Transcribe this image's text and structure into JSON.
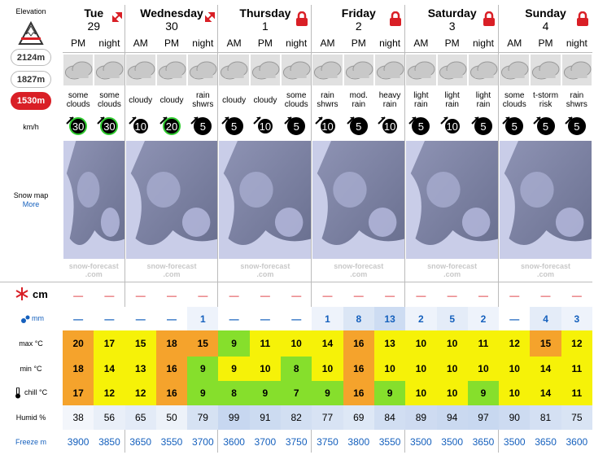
{
  "sidebar": {
    "elevation_label": "Elevation",
    "elevations": [
      "2124m",
      "1827m",
      "1530m"
    ],
    "wind_unit": "km/h",
    "snow_map": "Snow map",
    "more": "More",
    "snow_unit": "cm",
    "rain_unit": "mm",
    "max_label": "max °C",
    "min_label": "min °C",
    "chill_label": "chill °C",
    "humid_label": "Humid %",
    "freeze_label": "Freeze m"
  },
  "days": [
    {
      "name": "Tue",
      "date": "29",
      "periods": [
        "PM",
        "night"
      ]
    },
    {
      "name": "Wednesday",
      "date": "30",
      "periods": [
        "AM",
        "PM",
        "night"
      ]
    },
    {
      "name": "Thursday",
      "date": "1",
      "periods": [
        "AM",
        "PM",
        "night"
      ]
    },
    {
      "name": "Friday",
      "date": "2",
      "periods": [
        "AM",
        "PM",
        "night"
      ]
    },
    {
      "name": "Saturday",
      "date": "3",
      "periods": [
        "AM",
        "PM",
        "night"
      ]
    },
    {
      "name": "Sunday",
      "date": "4",
      "periods": [
        "AM",
        "PM",
        "night"
      ]
    }
  ],
  "weather": [
    "some clouds",
    "some clouds",
    "cloudy",
    "cloudy",
    "rain shwrs",
    "cloudy",
    "cloudy",
    "some clouds",
    "rain shwrs",
    "mod. rain",
    "heavy rain",
    "light rain",
    "light rain",
    "light rain",
    "some clouds",
    "t-storm risk",
    "rain shwrs"
  ],
  "wind": {
    "values": [
      30,
      30,
      10,
      20,
      5,
      5,
      10,
      5,
      10,
      5,
      10,
      5,
      10,
      5,
      5,
      5,
      5
    ],
    "ring_colors": [
      "#2ecc2e",
      "#2ecc2e",
      "#ffffff",
      "#2ecc2e",
      "#000000",
      "#000000",
      "#ffffff",
      "#000000",
      "#ffffff",
      "#000000",
      "#ffffff",
      "#000000",
      "#ffffff",
      "#000000",
      "#000000",
      "#000000",
      "#000000"
    ]
  },
  "watermark": [
    "snow-forecast",
    ".com"
  ],
  "snow_cm": [
    "—",
    "—",
    "—",
    "—",
    "—",
    "—",
    "—",
    "—",
    "—",
    "—",
    "—",
    "—",
    "—",
    "—",
    "—",
    "—",
    "—"
  ],
  "rain_mm": {
    "values": [
      "—",
      "—",
      "—",
      "—",
      1,
      "—",
      "—",
      "—",
      1,
      8,
      13,
      2,
      5,
      2,
      "—",
      4,
      3
    ],
    "colors": [
      "#ffffff",
      "#ffffff",
      "#ffffff",
      "#ffffff",
      "#eef3fb",
      "#ffffff",
      "#ffffff",
      "#ffffff",
      "#eef3fb",
      "#dbe6f5",
      "#cddcf2",
      "#eef3fb",
      "#e4ecf8",
      "#eef3fb",
      "#ffffff",
      "#e4ecf8",
      "#eef3fb"
    ]
  },
  "max_c": {
    "values": [
      20,
      17,
      15,
      18,
      15,
      9,
      11,
      10,
      14,
      16,
      13,
      10,
      10,
      11,
      12,
      15,
      12
    ],
    "colors": [
      "#f5a32c",
      "#f6f208",
      "#f6f208",
      "#f5a32c",
      "#f5a32c",
      "#86df2c",
      "#f6f208",
      "#f6f208",
      "#f6f208",
      "#f5a32c",
      "#f6f208",
      "#f6f208",
      "#f6f208",
      "#f6f208",
      "#f6f208",
      "#f5a32c",
      "#f6f208"
    ]
  },
  "min_c": {
    "values": [
      18,
      14,
      13,
      16,
      9,
      9,
      10,
      8,
      10,
      16,
      10,
      10,
      10,
      10,
      10,
      14,
      11
    ],
    "colors": [
      "#f5a32c",
      "#f6f208",
      "#f6f208",
      "#f5a32c",
      "#86df2c",
      "#f6f208",
      "#f6f208",
      "#86df2c",
      "#f6f208",
      "#f5a32c",
      "#f6f208",
      "#f6f208",
      "#f6f208",
      "#f6f208",
      "#f6f208",
      "#f6f208",
      "#f6f208"
    ]
  },
  "chill_c": {
    "values": [
      17,
      12,
      12,
      16,
      9,
      8,
      9,
      7,
      9,
      16,
      9,
      10,
      10,
      9,
      10,
      14,
      11
    ],
    "colors": [
      "#f5a32c",
      "#f6f208",
      "#f6f208",
      "#f5a32c",
      "#86df2c",
      "#86df2c",
      "#86df2c",
      "#86df2c",
      "#86df2c",
      "#f5a32c",
      "#86df2c",
      "#f6f208",
      "#f6f208",
      "#86df2c",
      "#f6f208",
      "#f6f208",
      "#f6f208"
    ]
  },
  "humid_pct": {
    "values": [
      38,
      56,
      65,
      50,
      79,
      99,
      91,
      82,
      77,
      69,
      84,
      89,
      94,
      97,
      90,
      81,
      75
    ],
    "colors": [
      "#f3f6fb",
      "#e9eff8",
      "#e3ebf7",
      "#edf2f9",
      "#d6e2f3",
      "#c7d7f0",
      "#ccdbf1",
      "#d2dff2",
      "#d8e3f4",
      "#dee8f6",
      "#d1def2",
      "#cedbf1",
      "#cad9f0",
      "#c8d8f0",
      "#cddbf1",
      "#d4e0f3",
      "#d9e4f4"
    ]
  },
  "freeze_m": [
    3900,
    3850,
    3650,
    3550,
    3700,
    3600,
    3700,
    3750,
    3750,
    3800,
    3550,
    3500,
    3500,
    3650,
    3500,
    3650,
    3600
  ]
}
